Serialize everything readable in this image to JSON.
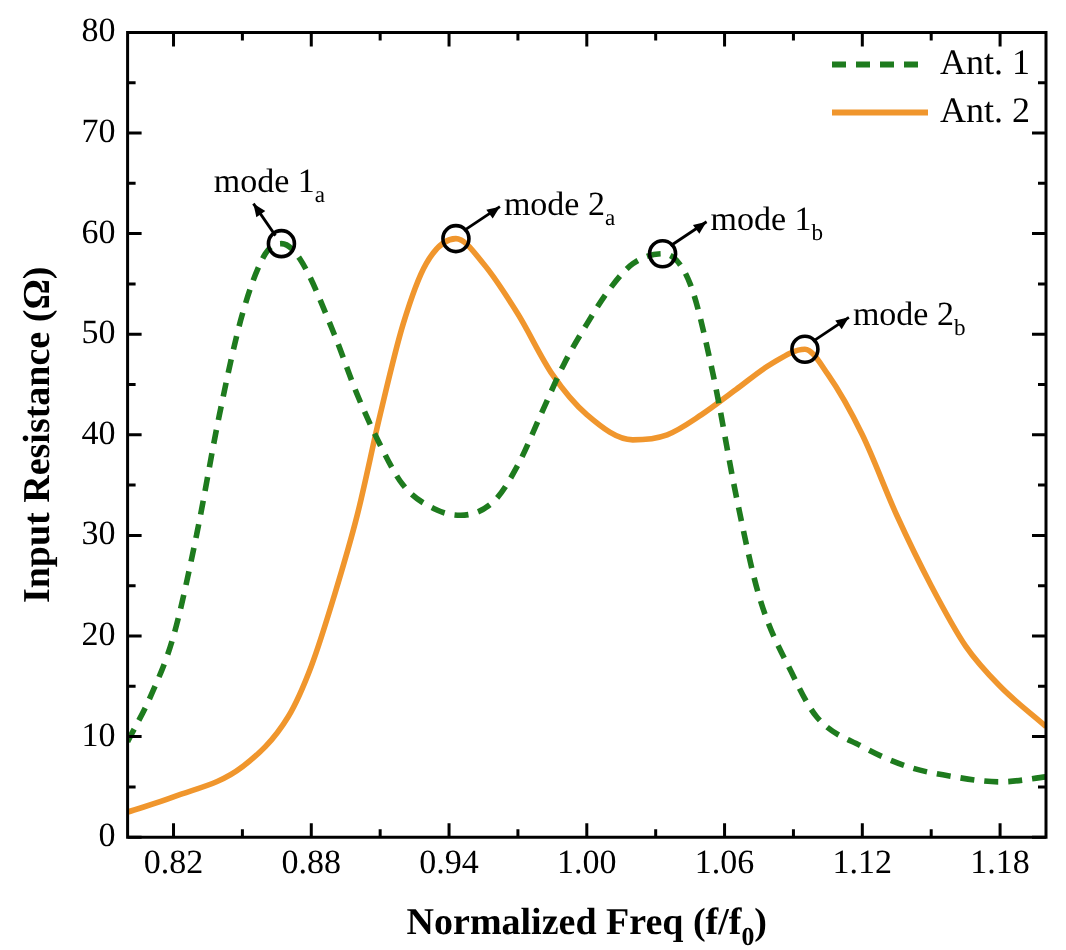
{
  "chart_data": {
    "type": "line",
    "xlabel": "Normalized Freq (f/f$_{0}$)",
    "ylabel": "Input Resistance (Ω)",
    "xlim": [
      0.8,
      1.2
    ],
    "xticks": [
      0.82,
      {
        "value": 0.85,
        "label": null
      },
      0.88,
      {
        "value": 0.91,
        "label": null
      },
      0.94,
      {
        "value": 0.97,
        "label": null
      },
      {
        "value": 1.0,
        "label": "1.00"
      },
      {
        "value": 1.03,
        "label": null
      },
      1.06,
      {
        "value": 1.09,
        "label": null
      },
      1.12,
      {
        "value": 1.15,
        "label": null
      },
      1.18
    ],
    "ylim": [
      0,
      80
    ],
    "yticks": [
      0,
      {
        "value": 5,
        "label": null
      },
      10,
      {
        "value": 15,
        "label": null
      },
      20,
      {
        "value": 25,
        "label": null
      },
      30,
      {
        "value": 35,
        "label": null
      },
      40,
      {
        "value": 45,
        "label": null
      },
      50,
      {
        "value": 55,
        "label": null
      },
      60,
      {
        "value": 65,
        "label": null
      },
      70,
      {
        "value": 75,
        "label": null
      },
      80
    ],
    "grid": false,
    "legend": "top right",
    "marker": "none",
    "series": [
      {
        "name": "Ant. 1",
        "color": "#1e7b1e",
        "line_style": "dashed",
        "x": [
          0.8,
          0.81,
          0.82,
          0.83,
          0.84,
          0.85,
          0.86,
          0.867,
          0.875,
          0.89,
          0.9,
          0.91,
          0.92,
          0.935,
          0.945,
          0.96,
          0.97,
          0.98,
          0.99,
          1.0,
          1.01,
          1.02,
          1.033,
          1.045,
          1.055,
          1.065,
          1.075,
          1.09,
          1.1,
          1.12,
          1.14,
          1.16,
          1.18,
          1.2
        ],
        "values": [
          9.5,
          14,
          20,
          30,
          42,
          52,
          58,
          59,
          57.5,
          50,
          44,
          39,
          35,
          32.5,
          32,
          33.5,
          37,
          42,
          47,
          51,
          54.5,
          57,
          58,
          55,
          46,
          34,
          24,
          16,
          12,
          9,
          7,
          6,
          5.5,
          6
        ]
      },
      {
        "name": "Ant. 2",
        "color": "#f0962d",
        "line_style": "solid",
        "x": [
          0.8,
          0.82,
          0.85,
          0.87,
          0.88,
          0.89,
          0.9,
          0.91,
          0.92,
          0.93,
          0.943,
          0.955,
          0.97,
          0.985,
          1.0,
          1.02,
          1.035,
          1.05,
          1.065,
          1.08,
          1.095,
          1.105,
          1.12,
          1.135,
          1.15,
          1.165,
          1.18,
          1.2
        ],
        "values": [
          2.5,
          4,
          7,
          12,
          17,
          24,
          32,
          42,
          51,
          57,
          59.5,
          57,
          52,
          46,
          42,
          39.5,
          40,
          42,
          44.5,
          47,
          48.5,
          46,
          40,
          32,
          25,
          19,
          15,
          11
        ]
      }
    ],
    "annotations": [
      {
        "text": "mode 1$_{a}$",
        "x": 0.867,
        "y": 59
      },
      {
        "text": "mode 2$_{a}$",
        "x": 0.943,
        "y": 59.5
      },
      {
        "text": "mode 1$_{b}$",
        "x": 1.033,
        "y": 58
      },
      {
        "text": "mode 2$_{b}$",
        "x": 1.095,
        "y": 48.5
      }
    ]
  }
}
